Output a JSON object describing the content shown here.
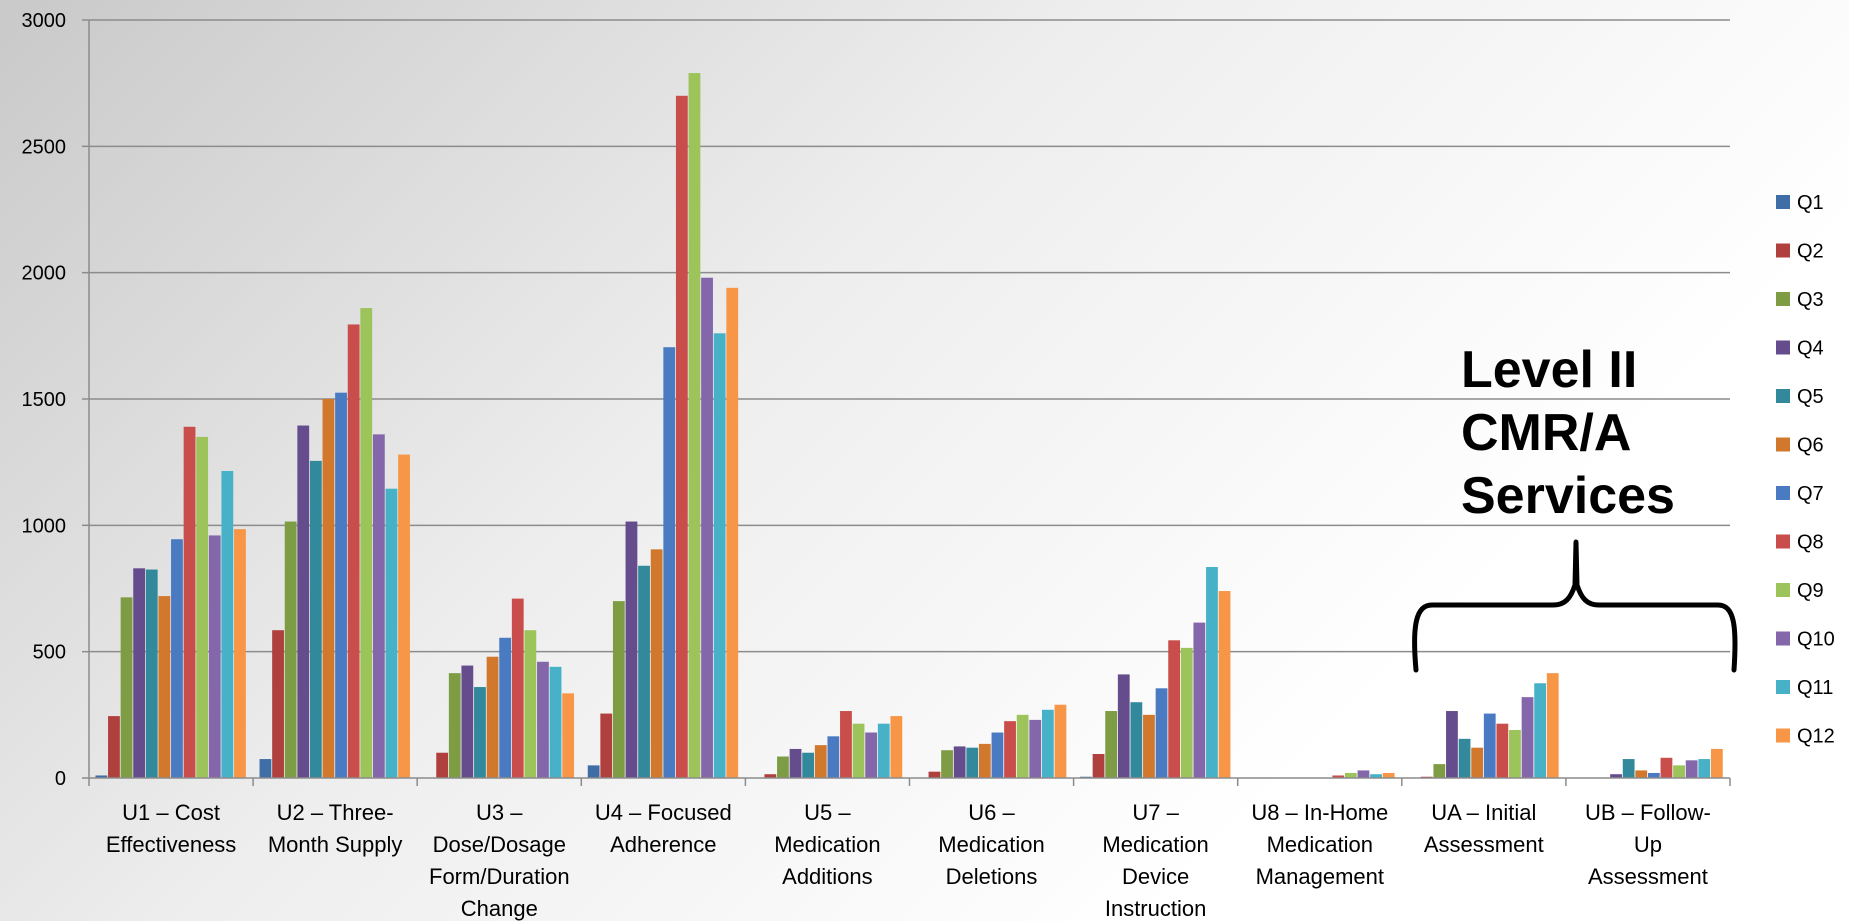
{
  "chart_data": {
    "type": "bar",
    "title": "",
    "xlabel": "",
    "ylabel": "",
    "ylim": [
      0,
      3000
    ],
    "yticks": [
      0,
      500,
      1000,
      1500,
      2000,
      2500,
      3000
    ],
    "grid": true,
    "legend_position": "right",
    "categories": [
      [
        "U1 – Cost",
        "Effectiveness"
      ],
      [
        "U2 – Three-",
        "Month Supply"
      ],
      [
        "U3 –",
        "Dose/Dosage",
        "Form/Duration",
        "Change"
      ],
      [
        "U4 – Focused",
        "Adherence"
      ],
      [
        "U5 –",
        "Medication",
        "Additions"
      ],
      [
        "U6 –",
        "Medication",
        "Deletions"
      ],
      [
        "U7 –",
        "Medication",
        "Device",
        "Instruction"
      ],
      [
        "U8 – In-Home",
        "Medication",
        "Management"
      ],
      [
        "UA – Initial",
        "Assessment"
      ],
      [
        "UB – Follow-",
        "Up",
        "Assessment"
      ]
    ],
    "series": [
      {
        "name": "Q1",
        "color": "#3f6ea6",
        "values": [
          10,
          75,
          0,
          50,
          0,
          0,
          5,
          0,
          0,
          0
        ]
      },
      {
        "name": "Q2",
        "color": "#b0403e",
        "values": [
          245,
          585,
          100,
          255,
          15,
          25,
          95,
          0,
          5,
          0
        ]
      },
      {
        "name": "Q3",
        "color": "#7e9c44",
        "values": [
          715,
          1015,
          415,
          700,
          85,
          110,
          265,
          0,
          55,
          0
        ]
      },
      {
        "name": "Q4",
        "color": "#654c8c",
        "values": [
          830,
          1395,
          445,
          1015,
          115,
          125,
          410,
          0,
          265,
          15
        ]
      },
      {
        "name": "Q5",
        "color": "#33899c",
        "values": [
          825,
          1255,
          360,
          840,
          100,
          120,
          300,
          0,
          155,
          75
        ]
      },
      {
        "name": "Q6",
        "color": "#d1782d",
        "values": [
          720,
          1500,
          480,
          905,
          130,
          135,
          250,
          0,
          120,
          30
        ]
      },
      {
        "name": "Q7",
        "color": "#4a7bc2",
        "values": [
          945,
          1525,
          555,
          1705,
          165,
          180,
          355,
          0,
          255,
          20
        ]
      },
      {
        "name": "Q8",
        "color": "#c94d4a",
        "values": [
          1390,
          1795,
          710,
          2700,
          265,
          225,
          545,
          10,
          215,
          80
        ]
      },
      {
        "name": "Q9",
        "color": "#9cc45a",
        "values": [
          1350,
          1860,
          585,
          2790,
          215,
          250,
          515,
          20,
          190,
          50
        ]
      },
      {
        "name": "Q10",
        "color": "#8466ab",
        "values": [
          960,
          1360,
          460,
          1980,
          180,
          230,
          615,
          30,
          320,
          70
        ]
      },
      {
        "name": "Q11",
        "color": "#47b1c8",
        "values": [
          1215,
          1145,
          440,
          1760,
          215,
          270,
          835,
          15,
          375,
          75
        ]
      },
      {
        "name": "Q12",
        "color": "#f79646",
        "values": [
          985,
          1280,
          335,
          1940,
          245,
          290,
          740,
          20,
          415,
          115
        ]
      }
    ],
    "annotation": {
      "lines": [
        "Level II",
        "CMR/A",
        "Services"
      ]
    }
  }
}
